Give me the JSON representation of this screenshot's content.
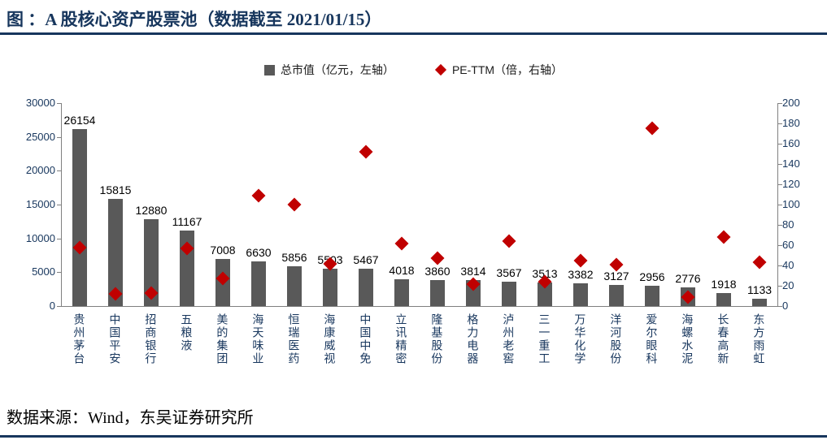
{
  "header": {
    "title": "图 ：A 股核心资产股票池（数据截至 2021/01/15）"
  },
  "legend": {
    "market_cap": "总市值（亿元，左轴）",
    "pe": "PE-TTM（倍，右轴）"
  },
  "footer": {
    "source": "数据来源：Wind，东吴证券研究所"
  },
  "colors": {
    "bar": "#595959",
    "diamond": "#C00000",
    "accent_navy": "#17365D",
    "axis_line": "#808080",
    "value_label": "#000000"
  },
  "chart_data": {
    "type": "bar",
    "title": "A 股核心资产股票池（数据截至 2021/01/15）",
    "legend_position": "top",
    "grid": false,
    "bar_value_labels": true,
    "categories": [
      "贵州茅台",
      "中国平安",
      "招商银行",
      "五粮液",
      "美的集团",
      "海天味业",
      "恒瑞医药",
      "海康威视",
      "中国中免",
      "立讯精密",
      "隆基股份",
      "格力电器",
      "泸州老窖",
      "三一重工",
      "万华化学",
      "洋河股份",
      "爱尔眼科",
      "海螺水泥",
      "长春高新",
      "东方雨虹"
    ],
    "series": [
      {
        "name": "总市值（亿元，左轴）",
        "type": "bar",
        "axis": "left",
        "values": [
          26154,
          15815,
          12880,
          11167,
          7008,
          6630,
          5856,
          5503,
          5467,
          4018,
          3860,
          3814,
          3567,
          3513,
          3382,
          3127,
          2956,
          2776,
          1918,
          1133
        ]
      },
      {
        "name": "PE-TTM（倍，右轴）",
        "type": "scatter",
        "axis": "right",
        "values": [
          58,
          12,
          13,
          57,
          27,
          109,
          100,
          42,
          152,
          62,
          47,
          22,
          64,
          24,
          45,
          41,
          175,
          9,
          68,
          43
        ]
      }
    ],
    "left_axis": {
      "min": 0,
      "max": 30000,
      "step": 5000
    },
    "right_axis": {
      "min": 0,
      "max": 200,
      "step": 20
    }
  }
}
